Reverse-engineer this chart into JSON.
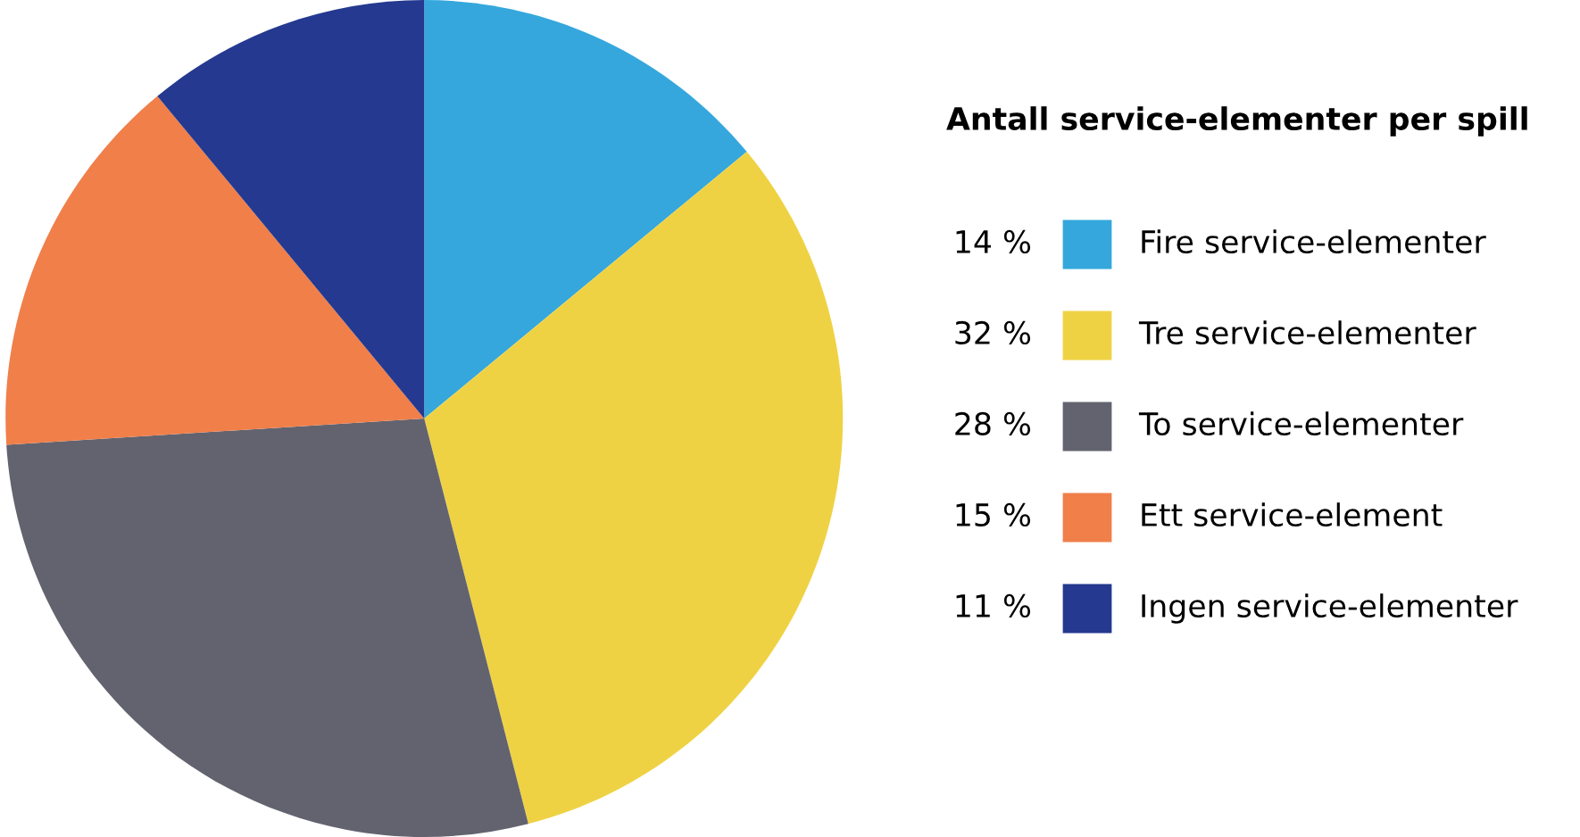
{
  "chart_data": {
    "type": "pie",
    "legend_title": "Antall service-elementer per spill",
    "categories": [
      "Fire service-elementer",
      "Tre service-elementer",
      "To service-elementer",
      "Ett service-element",
      "Ingen service-elementer"
    ],
    "values": [
      14,
      32,
      28,
      15,
      11
    ],
    "value_labels": [
      "14 %",
      "32 %",
      "28 %",
      "15 %",
      "11 %"
    ],
    "colors": [
      "#35a7dc",
      "#efd244",
      "#62636f",
      "#f07f4a",
      "#24398f"
    ],
    "legend": "right"
  }
}
